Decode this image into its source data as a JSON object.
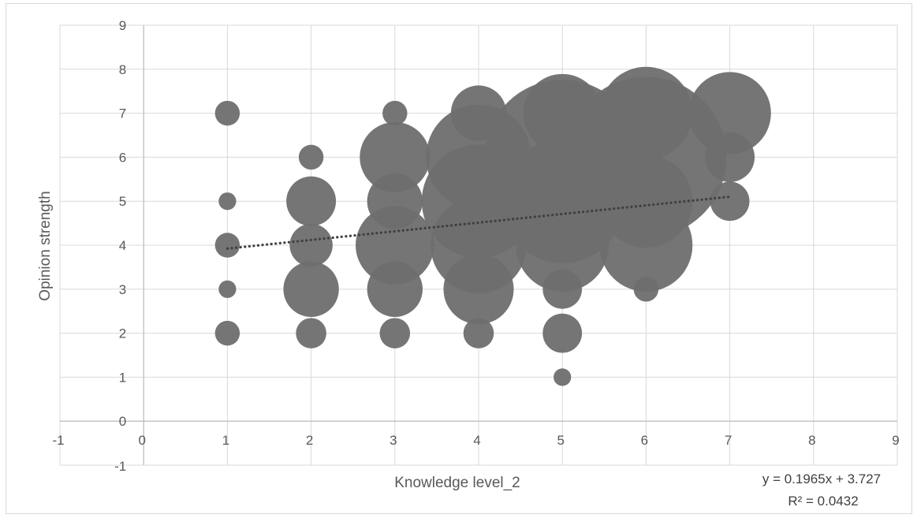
{
  "chart_data": {
    "type": "scatter",
    "subtype": "bubble",
    "title": "",
    "xlabel": "Knowledge level_2",
    "ylabel": "Opinion strength",
    "xlim": [
      -1,
      9
    ],
    "ylim": [
      -1,
      9
    ],
    "x_ticks": [
      "-1",
      "0",
      "1",
      "2",
      "3",
      "4",
      "5",
      "6",
      "7",
      "8",
      "9"
    ],
    "y_ticks": [
      "-1",
      "0",
      "1",
      "2",
      "3",
      "4",
      "5",
      "6",
      "7",
      "8",
      "9"
    ],
    "grid": true,
    "legend": "none",
    "bubble_color": "#6e6e6e",
    "points": [
      {
        "x": 1,
        "y": 7,
        "size": 1
      },
      {
        "x": 1,
        "y": 5,
        "size": 0.5
      },
      {
        "x": 1,
        "y": 4,
        "size": 1
      },
      {
        "x": 1,
        "y": 3,
        "size": 0.5
      },
      {
        "x": 1,
        "y": 2,
        "size": 1
      },
      {
        "x": 2,
        "y": 6,
        "size": 1
      },
      {
        "x": 2,
        "y": 5,
        "size": 4
      },
      {
        "x": 2,
        "y": 4,
        "size": 3
      },
      {
        "x": 2,
        "y": 3,
        "size": 5
      },
      {
        "x": 2,
        "y": 2,
        "size": 1.5
      },
      {
        "x": 3,
        "y": 7,
        "size": 1
      },
      {
        "x": 3,
        "y": 6,
        "size": 8
      },
      {
        "x": 3,
        "y": 5,
        "size": 5
      },
      {
        "x": 3,
        "y": 4,
        "size": 10
      },
      {
        "x": 3,
        "y": 3,
        "size": 5
      },
      {
        "x": 3,
        "y": 2,
        "size": 1.5
      },
      {
        "x": 4,
        "y": 7,
        "size": 5
      },
      {
        "x": 4,
        "y": 6,
        "size": 18
      },
      {
        "x": 4,
        "y": 5,
        "size": 21
      },
      {
        "x": 4,
        "y": 4,
        "size": 15
      },
      {
        "x": 4,
        "y": 3,
        "size": 8
      },
      {
        "x": 4,
        "y": 2,
        "size": 1.5
      },
      {
        "x": 5,
        "y": 7,
        "size": 10
      },
      {
        "x": 5,
        "y": 6,
        "size": 39
      },
      {
        "x": 5,
        "y": 5,
        "size": 25
      },
      {
        "x": 5,
        "y": 4,
        "size": 14
      },
      {
        "x": 5,
        "y": 3,
        "size": 2.5
      },
      {
        "x": 5,
        "y": 2,
        "size": 2.5
      },
      {
        "x": 5,
        "y": 1,
        "size": 0.5
      },
      {
        "x": 6,
        "y": 7,
        "size": 14
      },
      {
        "x": 6,
        "y": 6,
        "size": 42
      },
      {
        "x": 6,
        "y": 5,
        "size": 14
      },
      {
        "x": 6,
        "y": 4,
        "size": 14
      },
      {
        "x": 6,
        "y": 3,
        "size": 1
      },
      {
        "x": 7,
        "y": 7,
        "size": 11
      },
      {
        "x": 7,
        "y": 6,
        "size": 4
      },
      {
        "x": 7,
        "y": 5,
        "size": 2.5
      }
    ],
    "trendline": {
      "type": "linear",
      "slope": 0.1965,
      "intercept": 3.727,
      "x_range": [
        1,
        7
      ],
      "style": "dotted",
      "equation_label": "y = 0.1965x + 3.727",
      "r2_label": "R² = 0.0432"
    }
  }
}
